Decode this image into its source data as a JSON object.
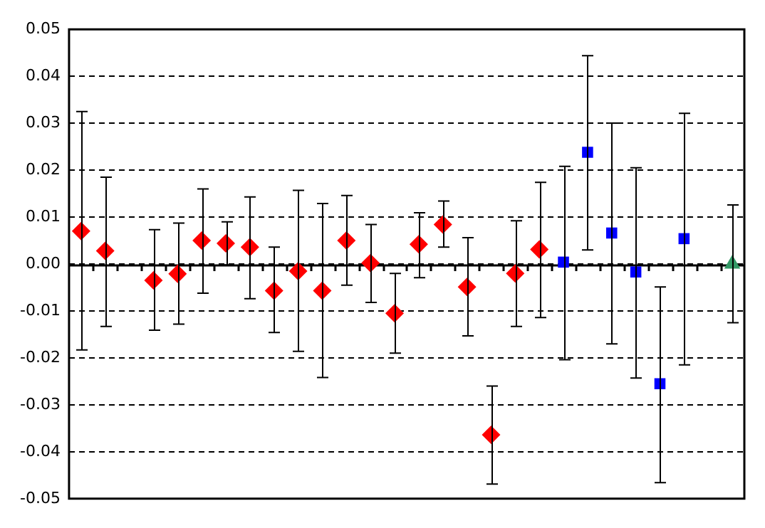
{
  "chart_data": {
    "type": "scatter",
    "categories": [
      null,
      null,
      null,
      null,
      null,
      null,
      null,
      null,
      null,
      null,
      null,
      null,
      null,
      null,
      null,
      null,
      null,
      null,
      null,
      null,
      null,
      null,
      null,
      null,
      null,
      null,
      null,
      null
    ],
    "series": [
      {
        "color": "#ff0000",
        "marker": "diamond",
        "values": [
          0.007,
          0.0028,
          null,
          -0.0035,
          -0.0021,
          0.005,
          0.0044,
          0.0036,
          -0.0057,
          -0.0015,
          -0.0057,
          0.005,
          0.0002,
          -0.0105,
          0.0042,
          0.0084,
          -0.0049,
          -0.0364,
          -0.002,
          0.0031,
          null,
          null,
          null,
          null,
          null,
          null,
          null,
          null
        ],
        "errors": [
          [
            -0.0183,
            0.0325
          ],
          [
            -0.0133,
            0.0185
          ],
          null,
          [
            -0.0141,
            0.0073
          ],
          [
            -0.0128,
            0.0087
          ],
          [
            -0.0062,
            0.016
          ],
          [
            -0.0002,
            0.009
          ],
          [
            -0.0074,
            0.0143
          ],
          [
            -0.0146,
            0.0036
          ],
          [
            -0.0186,
            0.0157
          ],
          [
            -0.0242,
            0.0129
          ],
          [
            -0.0045,
            0.0146
          ],
          [
            -0.0082,
            0.0084
          ],
          [
            -0.019,
            -0.002
          ],
          [
            -0.0029,
            0.0109
          ],
          [
            0.0036,
            0.0134
          ],
          [
            -0.0153,
            0.0056
          ],
          [
            -0.0469,
            -0.026
          ],
          [
            -0.0133,
            0.0092
          ],
          [
            -0.0114,
            0.0174
          ],
          null,
          null,
          null,
          null,
          null,
          null,
          null,
          null
        ]
      },
      {
        "color": "#0000ff",
        "marker": "square",
        "values": [
          null,
          null,
          null,
          null,
          null,
          null,
          null,
          null,
          null,
          null,
          null,
          null,
          null,
          null,
          null,
          null,
          null,
          null,
          null,
          null,
          0.0004,
          0.0238,
          0.0066,
          -0.0017,
          -0.0255,
          0.0054,
          null,
          null
        ],
        "errors": [
          null,
          null,
          null,
          null,
          null,
          null,
          null,
          null,
          null,
          null,
          null,
          null,
          null,
          null,
          null,
          null,
          null,
          null,
          null,
          null,
          [
            -0.0204,
            0.0208
          ],
          [
            0.003,
            0.0444
          ],
          [
            -0.017,
            0.03
          ],
          [
            -0.0243,
            0.0205
          ],
          [
            -0.0466,
            -0.0049
          ],
          [
            -0.0215,
            0.0321
          ],
          null,
          null
        ]
      },
      {
        "color": "#339966",
        "marker": "triangle",
        "values": [
          null,
          null,
          null,
          null,
          null,
          null,
          null,
          null,
          null,
          null,
          null,
          null,
          null,
          null,
          null,
          null,
          null,
          null,
          null,
          null,
          null,
          null,
          null,
          null,
          null,
          null,
          null,
          0.0
        ],
        "errors": [
          null,
          null,
          null,
          null,
          null,
          null,
          null,
          null,
          null,
          null,
          null,
          null,
          null,
          null,
          null,
          null,
          null,
          null,
          null,
          null,
          null,
          null,
          null,
          null,
          null,
          null,
          null,
          [
            -0.0125,
            0.0126
          ]
        ]
      }
    ],
    "ylim": [
      -0.05,
      0.05
    ],
    "yticks": [
      {
        "value": -0.05,
        "label": "-0.05"
      },
      {
        "value": -0.04,
        "label": "-0.04"
      },
      {
        "value": -0.03,
        "label": "-0.03"
      },
      {
        "value": -0.02,
        "label": "-0.02"
      },
      {
        "value": -0.01,
        "label": "-0.01"
      },
      {
        "value": 0,
        "label": "0.00"
      },
      {
        "value": 0.01,
        "label": "0.01"
      },
      {
        "value": 0.02,
        "label": "0.02"
      },
      {
        "value": 0.03,
        "label": "0.03"
      },
      {
        "value": 0.04,
        "label": "0.04"
      },
      {
        "value": 0.05,
        "label": "0.05"
      }
    ],
    "grid": "y",
    "legend": false,
    "tick_labels": "y"
  }
}
